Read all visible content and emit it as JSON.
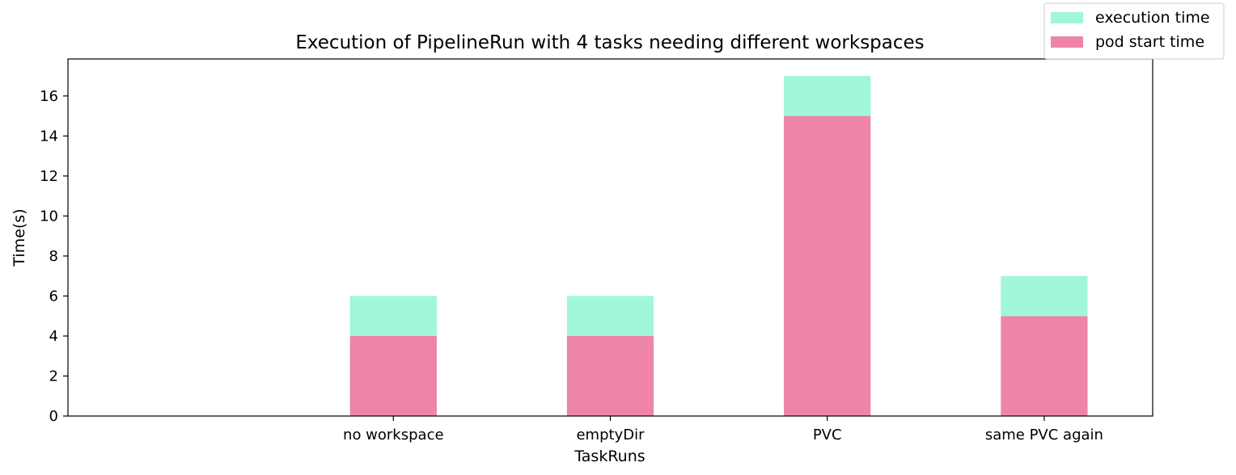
{
  "chart_data": {
    "type": "bar",
    "stacked": true,
    "title": "Execution of PipelineRun with 4 tasks needing different workspaces",
    "xlabel": "TaskRuns",
    "ylabel": "Time(s)",
    "categories": [
      "no workspace",
      "emptyDir",
      "PVC",
      "same PVC again"
    ],
    "series": [
      {
        "name": "pod start time",
        "values": [
          4,
          4,
          15,
          5
        ],
        "color": "#ee85a8"
      },
      {
        "name": "execution time",
        "values": [
          2,
          2,
          2,
          2
        ],
        "color": "#a0f8d8"
      }
    ],
    "legend_order": [
      "execution time",
      "pod start time"
    ],
    "ylim": [
      0,
      17.85
    ],
    "yticks": [
      0,
      2,
      4,
      6,
      8,
      10,
      12,
      14,
      16
    ],
    "xlim": [
      -1.5,
      3.5
    ],
    "grid": false,
    "legend_position": "top-right"
  }
}
